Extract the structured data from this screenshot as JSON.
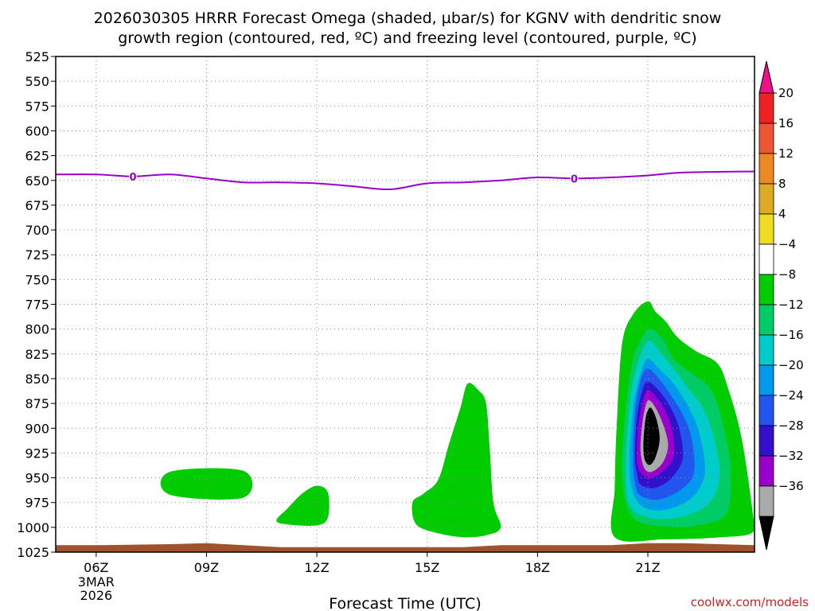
{
  "title_line1": "2026030305 HRRR Forecast Omega (shaded, µbar/s) for KGNV with dendritic snow",
  "title_line2": "growth region (contoured, red, ºC) and freezing level (contoured, purple, ºC)",
  "credit": "coolwx.com/models",
  "chart_data": {
    "type": "contour",
    "xlabel": "Forecast Time (UTC)",
    "ylabel": "",
    "x_unit": "hours since 2026-03-03 00Z",
    "xlim": [
      4.9,
      23.9
    ],
    "ylim": [
      525,
      1025
    ],
    "y_inverted": true,
    "x_ticks": [
      {
        "x": 6,
        "label": "06Z",
        "sub": [
          "3MAR",
          "2026"
        ]
      },
      {
        "x": 9,
        "label": "09Z",
        "sub": []
      },
      {
        "x": 12,
        "label": "12Z",
        "sub": []
      },
      {
        "x": 15,
        "label": "15Z",
        "sub": []
      },
      {
        "x": 18,
        "label": "18Z",
        "sub": []
      },
      {
        "x": 21,
        "label": "21Z",
        "sub": []
      }
    ],
    "y_ticks": [
      525,
      550,
      575,
      600,
      625,
      650,
      675,
      700,
      725,
      750,
      775,
      800,
      825,
      850,
      875,
      900,
      925,
      950,
      975,
      1000,
      1025
    ],
    "freezing_level": {
      "color": "#9900cc",
      "label": "0",
      "label_x": [
        7,
        19
      ],
      "points": [
        [
          4.9,
          644
        ],
        [
          6,
          644
        ],
        [
          7,
          646
        ],
        [
          8,
          644
        ],
        [
          9,
          648
        ],
        [
          10,
          652
        ],
        [
          11,
          652
        ],
        [
          12,
          653
        ],
        [
          13,
          656
        ],
        [
          14,
          659
        ],
        [
          15,
          653
        ],
        [
          16,
          652
        ],
        [
          17,
          650
        ],
        [
          18,
          647
        ],
        [
          19,
          648
        ],
        [
          20,
          647
        ],
        [
          21,
          645
        ],
        [
          22,
          642
        ],
        [
          23.9,
          641
        ]
      ]
    },
    "terrain": {
      "color": "#a0522d",
      "top": [
        [
          4.9,
          1018
        ],
        [
          6,
          1018
        ],
        [
          8,
          1017
        ],
        [
          9,
          1016
        ],
        [
          10,
          1018
        ],
        [
          11,
          1020
        ],
        [
          13,
          1020
        ],
        [
          15,
          1020
        ],
        [
          16,
          1020
        ],
        [
          17,
          1018
        ],
        [
          20,
          1018
        ],
        [
          21,
          1016
        ],
        [
          22,
          1016
        ],
        [
          23.9,
          1018
        ]
      ]
    },
    "omega_regions": [
      {
        "level": -4,
        "color": "#00cc00",
        "points": [
          [
            8,
            944
          ],
          [
            10,
            943
          ],
          [
            10,
            970
          ],
          [
            8,
            967
          ]
        ]
      },
      {
        "level": -4,
        "color": "#00cc00",
        "points": [
          [
            10.9,
            993
          ],
          [
            11.2,
            981
          ],
          [
            11.6,
            966
          ],
          [
            12,
            958
          ],
          [
            12.3,
            965
          ],
          [
            12.3,
            990
          ],
          [
            12,
            998
          ],
          [
            11.2,
            997
          ]
        ]
      },
      {
        "level": -4,
        "color": "#00cc00",
        "points": [
          [
            14.6,
            975
          ],
          [
            14.9,
            966
          ],
          [
            15.3,
            952
          ],
          [
            15.6,
            915
          ],
          [
            15.9,
            880
          ],
          [
            16.1,
            855
          ],
          [
            16.4,
            862
          ],
          [
            16.6,
            875
          ],
          [
            16.7,
            920
          ],
          [
            16.8,
            975
          ],
          [
            17,
            1000
          ],
          [
            16.6,
            1008
          ],
          [
            16,
            1010
          ],
          [
            15.3,
            1006
          ],
          [
            14.7,
            997
          ]
        ]
      },
      {
        "level": -4,
        "color": "#00cc00",
        "points": [
          [
            20.1,
            1010
          ],
          [
            20.1,
            960
          ],
          [
            20.15,
            900
          ],
          [
            20.3,
            815
          ],
          [
            20.6,
            785
          ],
          [
            21,
            772
          ],
          [
            21.2,
            782
          ],
          [
            21.5,
            793
          ],
          [
            21.8,
            808
          ],
          [
            22.3,
            822
          ],
          [
            22.9,
            835
          ],
          [
            23.2,
            862
          ],
          [
            23.55,
            910
          ],
          [
            23.85,
            985
          ],
          [
            23.85,
            1005
          ],
          [
            23,
            1010
          ],
          [
            21.5,
            1012
          ]
        ]
      },
      {
        "level": -8,
        "color": "#00cc66",
        "points": [
          [
            20.3,
            950
          ],
          [
            20.4,
            880
          ],
          [
            20.6,
            830
          ],
          [
            20.9,
            805
          ],
          [
            21.1,
            800
          ],
          [
            21.4,
            810
          ],
          [
            21.7,
            830
          ],
          [
            22.2,
            845
          ],
          [
            22.7,
            860
          ],
          [
            23,
            890
          ],
          [
            23.25,
            940
          ],
          [
            23.15,
            985
          ],
          [
            22.5,
            997
          ],
          [
            21.5,
            999
          ],
          [
            20.6,
            990
          ]
        ]
      },
      {
        "level": -12,
        "color": "#00cccc",
        "points": [
          [
            20.4,
            940
          ],
          [
            20.5,
            878
          ],
          [
            20.7,
            838
          ],
          [
            21,
            812
          ],
          [
            21.3,
            822
          ],
          [
            21.7,
            840
          ],
          [
            22.1,
            860
          ],
          [
            22.5,
            880
          ],
          [
            22.8,
            910
          ],
          [
            22.95,
            950
          ],
          [
            22.6,
            978
          ],
          [
            21.8,
            990
          ],
          [
            21,
            990
          ],
          [
            20.5,
            977
          ]
        ]
      },
      {
        "level": -16,
        "color": "#0099ee",
        "points": [
          [
            20.5,
            935
          ],
          [
            20.6,
            880
          ],
          [
            20.8,
            845
          ],
          [
            21,
            830
          ],
          [
            21.3,
            840
          ],
          [
            21.7,
            855
          ],
          [
            22.1,
            878
          ],
          [
            22.4,
            905
          ],
          [
            22.55,
            945
          ],
          [
            22.2,
            970
          ],
          [
            21.5,
            982
          ],
          [
            20.9,
            980
          ],
          [
            20.6,
            965
          ]
        ]
      },
      {
        "level": -20,
        "color": "#2255ee",
        "points": [
          [
            20.6,
            930
          ],
          [
            20.65,
            885
          ],
          [
            20.8,
            852
          ],
          [
            21,
            840
          ],
          [
            21.3,
            850
          ],
          [
            21.65,
            868
          ],
          [
            22,
            890
          ],
          [
            22.2,
            912
          ],
          [
            22.25,
            945
          ],
          [
            21.9,
            962
          ],
          [
            21.3,
            972
          ],
          [
            20.8,
            968
          ],
          [
            20.65,
            955
          ]
        ]
      },
      {
        "level": -24,
        "color": "#3311cc",
        "points": [
          [
            20.65,
            928
          ],
          [
            20.7,
            890
          ],
          [
            20.85,
            862
          ],
          [
            21,
            853
          ],
          [
            21.3,
            862
          ],
          [
            21.6,
            878
          ],
          [
            21.85,
            900
          ],
          [
            21.95,
            930
          ],
          [
            21.65,
            950
          ],
          [
            21.2,
            960
          ],
          [
            20.8,
            957
          ],
          [
            20.7,
            945
          ]
        ]
      },
      {
        "level": -28,
        "color": "#9900cc",
        "points": [
          [
            20.7,
            925
          ],
          [
            20.75,
            895
          ],
          [
            20.9,
            868
          ],
          [
            21.05,
            862
          ],
          [
            21.3,
            872
          ],
          [
            21.55,
            888
          ],
          [
            21.7,
            910
          ],
          [
            21.7,
            930
          ],
          [
            21.45,
            942
          ],
          [
            21.1,
            950
          ],
          [
            20.85,
            947
          ],
          [
            20.72,
            938
          ]
        ]
      },
      {
        "level": -32,
        "color": "#aaaaaa",
        "points": [
          [
            20.8,
            922
          ],
          [
            20.85,
            895
          ],
          [
            20.95,
            876
          ],
          [
            21.05,
            872
          ],
          [
            21.25,
            882
          ],
          [
            21.45,
            900
          ],
          [
            21.55,
            918
          ],
          [
            21.4,
            935
          ],
          [
            21.1,
            944
          ],
          [
            20.9,
            940
          ]
        ]
      },
      {
        "level": -36,
        "color": "#000000",
        "points": [
          [
            20.88,
            918
          ],
          [
            20.92,
            895
          ],
          [
            21,
            882
          ],
          [
            21.1,
            880
          ],
          [
            21.25,
            893
          ],
          [
            21.32,
            912
          ],
          [
            21.2,
            930
          ],
          [
            21.05,
            937
          ],
          [
            20.92,
            932
          ]
        ]
      }
    ],
    "colorbar": {
      "unit": "µbar/s",
      "labels": [
        "20",
        "16",
        "12",
        "8",
        "4",
        "−4",
        "−8",
        "−12",
        "−16",
        "−20",
        "−24",
        "−28",
        "−32",
        "−36"
      ],
      "top_color": "#ee1188",
      "bottom_color": "#000000",
      "colors": [
        "#ee2222",
        "#ee5533",
        "#ee8822",
        "#ddaa22",
        "#eedd22",
        "#ffffff",
        "#00cc00",
        "#00cc66",
        "#00cccc",
        "#0099ee",
        "#2255ee",
        "#3311cc",
        "#9900cc",
        "#aaaaaa"
      ]
    }
  }
}
